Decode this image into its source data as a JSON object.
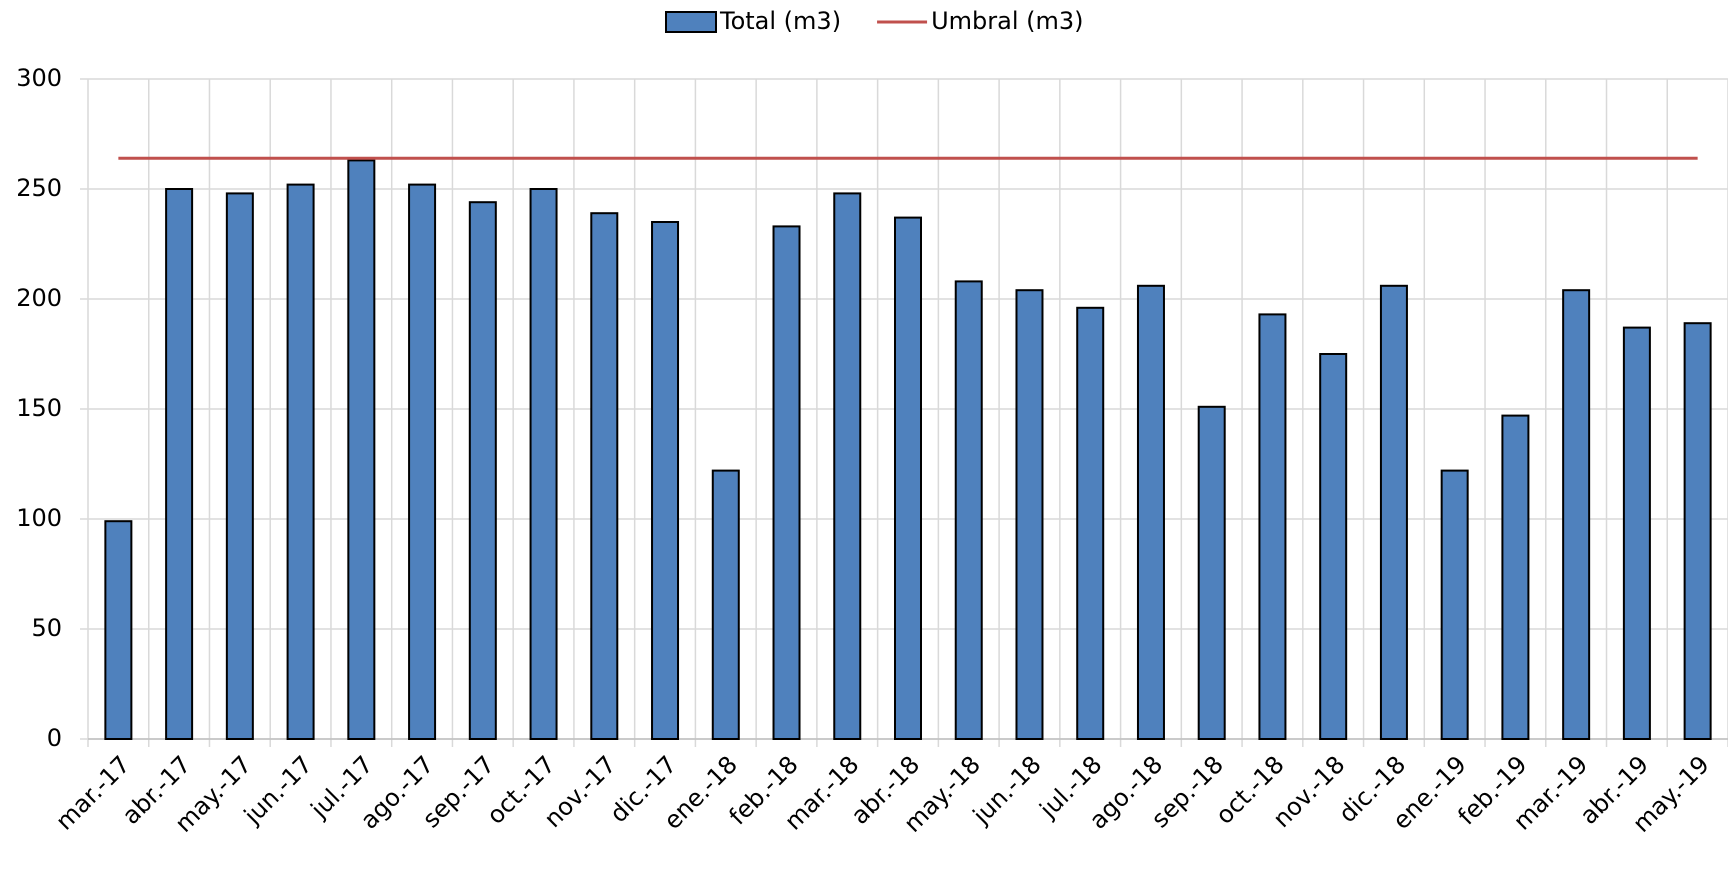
{
  "chart_data": {
    "type": "bar",
    "categories": [
      "mar.-17",
      "abr.-17",
      "may.-17",
      "jun.-17",
      "jul.-17",
      "ago.-17",
      "sep.-17",
      "oct.-17",
      "nov.-17",
      "dic.-17",
      "ene.-18",
      "feb.-18",
      "mar.-18",
      "abr.-18",
      "may.-18",
      "jun.-18",
      "jul.-18",
      "ago.-18",
      "sep.-18",
      "oct.-18",
      "nov.-18",
      "dic.-18",
      "ene.-19",
      "feb.-19",
      "mar.-19",
      "abr.-19",
      "may.-19"
    ],
    "series": [
      {
        "name": "Total (m3)",
        "type": "bar",
        "color": "#4f81bd",
        "values": [
          99,
          250,
          248,
          252,
          263,
          252,
          244,
          250,
          239,
          235,
          122,
          233,
          248,
          237,
          208,
          204,
          196,
          206,
          151,
          193,
          175,
          206,
          122,
          147,
          204,
          187,
          189
        ]
      },
      {
        "name": "Umbral (m3)",
        "type": "line",
        "color": "#c0504d",
        "values": [
          264,
          264,
          264,
          264,
          264,
          264,
          264,
          264,
          264,
          264,
          264,
          264,
          264,
          264,
          264,
          264,
          264,
          264,
          264,
          264,
          264,
          264,
          264,
          264,
          264,
          264,
          264
        ]
      }
    ],
    "ylim": [
      0,
      300
    ],
    "yticks": [
      0,
      50,
      100,
      150,
      200,
      250,
      300
    ],
    "grid": true,
    "legend": "top"
  }
}
